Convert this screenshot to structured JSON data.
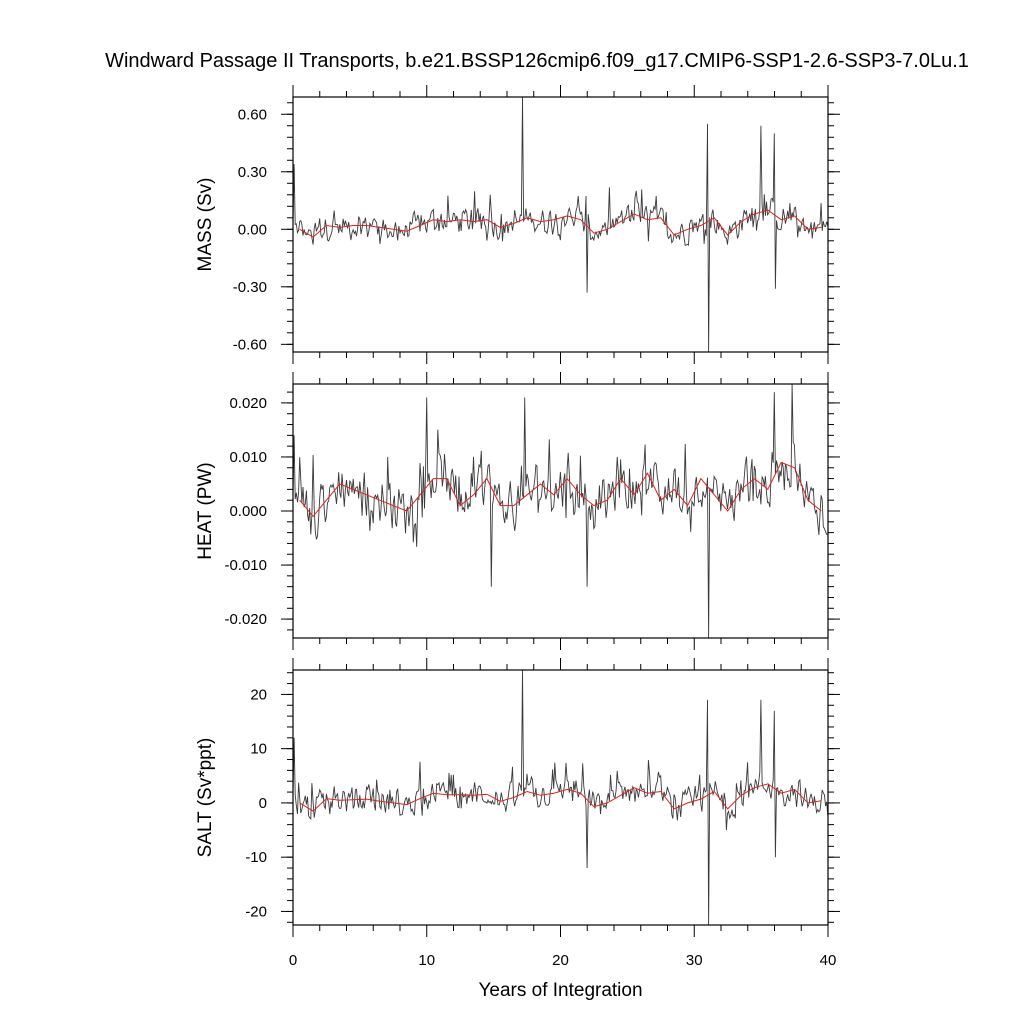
{
  "title": "Windward Passage II Transports, b.e21.BSSP126cmip6.f09_g17.CMIP6-SSP1-2.6-SSP3-7.0Lu.1",
  "colors": {
    "raw_series": "#3a3a3a",
    "annual_mean": "#e02020",
    "frame": "#000000"
  },
  "chart_data": [
    {
      "type": "line",
      "ylabel": "MASS (Sv)",
      "xlim": [
        0,
        40
      ],
      "ylim": [
        -0.64,
        0.69
      ],
      "yticks": [
        -0.6,
        -0.3,
        0.0,
        0.3,
        0.6
      ],
      "ytick_labels": [
        "-0.60",
        "-0.30",
        "0.00",
        "0.30",
        "0.60"
      ],
      "xticks": [
        0,
        10,
        20,
        30,
        40
      ],
      "xtick_labels": [],
      "raw_time_step_years": 0.0833,
      "raw_amplitude_approx": 0.09,
      "spikes": [
        [
          0.1,
          0.34
        ],
        [
          17.2,
          0.69
        ],
        [
          22.0,
          -0.33
        ],
        [
          31.1,
          -0.64
        ],
        [
          31.0,
          0.55
        ],
        [
          35.0,
          0.54
        ],
        [
          36.1,
          -0.31
        ],
        [
          36.0,
          0.5
        ]
      ],
      "annual_means": [
        [
          0.5,
          0.0
        ],
        [
          1.5,
          -0.04
        ],
        [
          2.5,
          0.02
        ],
        [
          3.5,
          0.01
        ],
        [
          4.5,
          0.02
        ],
        [
          5.5,
          0.02
        ],
        [
          6.5,
          0.01
        ],
        [
          7.5,
          0.0
        ],
        [
          8.5,
          -0.01
        ],
        [
          9.5,
          0.02
        ],
        [
          10.5,
          0.05
        ],
        [
          11.5,
          0.04
        ],
        [
          12.5,
          0.05
        ],
        [
          13.5,
          0.04
        ],
        [
          14.5,
          0.05
        ],
        [
          15.5,
          0.01
        ],
        [
          16.5,
          0.03
        ],
        [
          17.5,
          0.06
        ],
        [
          18.5,
          0.04
        ],
        [
          19.5,
          0.05
        ],
        [
          20.5,
          0.07
        ],
        [
          21.5,
          0.05
        ],
        [
          22.5,
          -0.02
        ],
        [
          23.5,
          0.0
        ],
        [
          24.5,
          0.04
        ],
        [
          25.5,
          0.08
        ],
        [
          26.5,
          0.05
        ],
        [
          27.5,
          0.06
        ],
        [
          28.5,
          -0.03
        ],
        [
          29.5,
          0.0
        ],
        [
          30.5,
          0.02
        ],
        [
          31.5,
          0.06
        ],
        [
          32.5,
          -0.03
        ],
        [
          33.5,
          0.04
        ],
        [
          34.5,
          0.08
        ],
        [
          35.5,
          0.1
        ],
        [
          36.5,
          0.05
        ],
        [
          37.5,
          0.07
        ],
        [
          38.5,
          0.0
        ],
        [
          39.5,
          0.01
        ]
      ]
    },
    {
      "type": "line",
      "ylabel": "HEAT (PW)",
      "xlim": [
        0,
        40
      ],
      "ylim": [
        -0.0235,
        0.0235
      ],
      "yticks": [
        -0.02,
        -0.01,
        0.0,
        0.01,
        0.02
      ],
      "ytick_labels": [
        "-0.020",
        "-0.010",
        "0.000",
        "0.010",
        "0.020"
      ],
      "xticks": [
        0,
        10,
        20,
        30,
        40
      ],
      "xtick_labels": [],
      "raw_time_step_years": 0.0833,
      "raw_amplitude_approx": 0.0055,
      "spikes": [
        [
          0.1,
          0.014
        ],
        [
          10.0,
          0.021
        ],
        [
          14.8,
          -0.014
        ],
        [
          17.3,
          0.021
        ],
        [
          22.0,
          -0.014
        ],
        [
          31.1,
          -0.0235
        ],
        [
          36.0,
          0.022
        ],
        [
          37.3,
          0.0235
        ]
      ],
      "annual_means": [
        [
          0.5,
          0.002
        ],
        [
          1.5,
          -0.001
        ],
        [
          2.5,
          0.002
        ],
        [
          3.5,
          0.005
        ],
        [
          4.5,
          0.004
        ],
        [
          5.5,
          0.003
        ],
        [
          6.5,
          0.002
        ],
        [
          7.5,
          0.001
        ],
        [
          8.5,
          0.0
        ],
        [
          9.5,
          0.003
        ],
        [
          10.5,
          0.006
        ],
        [
          11.5,
          0.006
        ],
        [
          12.5,
          0.001
        ],
        [
          13.5,
          0.003
        ],
        [
          14.5,
          0.006
        ],
        [
          15.5,
          0.001
        ],
        [
          16.5,
          0.001
        ],
        [
          17.5,
          0.003
        ],
        [
          18.5,
          0.005
        ],
        [
          19.5,
          0.003
        ],
        [
          20.5,
          0.006
        ],
        [
          21.5,
          0.003
        ],
        [
          22.5,
          0.001
        ],
        [
          23.5,
          0.002
        ],
        [
          24.5,
          0.006
        ],
        [
          25.5,
          0.003
        ],
        [
          26.5,
          0.007
        ],
        [
          27.5,
          0.002
        ],
        [
          28.5,
          0.004
        ],
        [
          29.5,
          0.001
        ],
        [
          30.5,
          0.006
        ],
        [
          31.5,
          0.003
        ],
        [
          32.5,
          0.0
        ],
        [
          33.5,
          0.004
        ],
        [
          34.5,
          0.006
        ],
        [
          35.5,
          0.004
        ],
        [
          36.5,
          0.009
        ],
        [
          37.5,
          0.008
        ],
        [
          38.5,
          0.002
        ],
        [
          39.5,
          0.0
        ]
      ]
    },
    {
      "type": "line",
      "ylabel": "SALT (Sv*ppt)",
      "xlim": [
        0,
        40
      ],
      "ylim": [
        -22.5,
        24.5
      ],
      "yticks": [
        -20,
        -10,
        0,
        10,
        20
      ],
      "ytick_labels": [
        "-20",
        "-10",
        "0",
        "10",
        "20"
      ],
      "xticks": [
        0,
        10,
        20,
        30,
        40
      ],
      "xtick_labels": [
        "0",
        "10",
        "20",
        "30",
        "40"
      ],
      "xlabel": "Years of Integration",
      "raw_time_step_years": 0.0833,
      "raw_amplitude_approx": 3.2,
      "spikes": [
        [
          0.1,
          12.0
        ],
        [
          17.2,
          24.5
        ],
        [
          22.0,
          -12.0
        ],
        [
          31.1,
          -22.5
        ],
        [
          31.0,
          19.0
        ],
        [
          35.0,
          19.0
        ],
        [
          36.1,
          -10.0
        ],
        [
          36.0,
          17.0
        ]
      ],
      "annual_means": [
        [
          0.5,
          0.0
        ],
        [
          1.5,
          -1.5
        ],
        [
          2.5,
          0.8
        ],
        [
          3.5,
          0.5
        ],
        [
          4.5,
          0.6
        ],
        [
          5.5,
          0.7
        ],
        [
          6.5,
          0.3
        ],
        [
          7.5,
          0.0
        ],
        [
          8.5,
          -0.3
        ],
        [
          9.5,
          0.8
        ],
        [
          10.5,
          1.8
        ],
        [
          11.5,
          1.5
        ],
        [
          12.5,
          1.5
        ],
        [
          13.5,
          1.4
        ],
        [
          14.5,
          1.6
        ],
        [
          15.5,
          0.3
        ],
        [
          16.5,
          1.0
        ],
        [
          17.5,
          2.1
        ],
        [
          18.5,
          1.4
        ],
        [
          19.5,
          1.8
        ],
        [
          20.5,
          2.5
        ],
        [
          21.5,
          1.8
        ],
        [
          22.5,
          -0.7
        ],
        [
          23.5,
          0.0
        ],
        [
          24.5,
          1.4
        ],
        [
          25.5,
          2.8
        ],
        [
          26.5,
          1.8
        ],
        [
          27.5,
          2.1
        ],
        [
          28.5,
          -1.1
        ],
        [
          29.5,
          0.0
        ],
        [
          30.5,
          0.7
        ],
        [
          31.5,
          2.1
        ],
        [
          32.5,
          -1.1
        ],
        [
          33.5,
          1.4
        ],
        [
          34.5,
          2.8
        ],
        [
          35.5,
          3.5
        ],
        [
          36.5,
          1.8
        ],
        [
          37.5,
          2.5
        ],
        [
          38.5,
          0.0
        ],
        [
          39.5,
          0.4
        ]
      ]
    }
  ]
}
